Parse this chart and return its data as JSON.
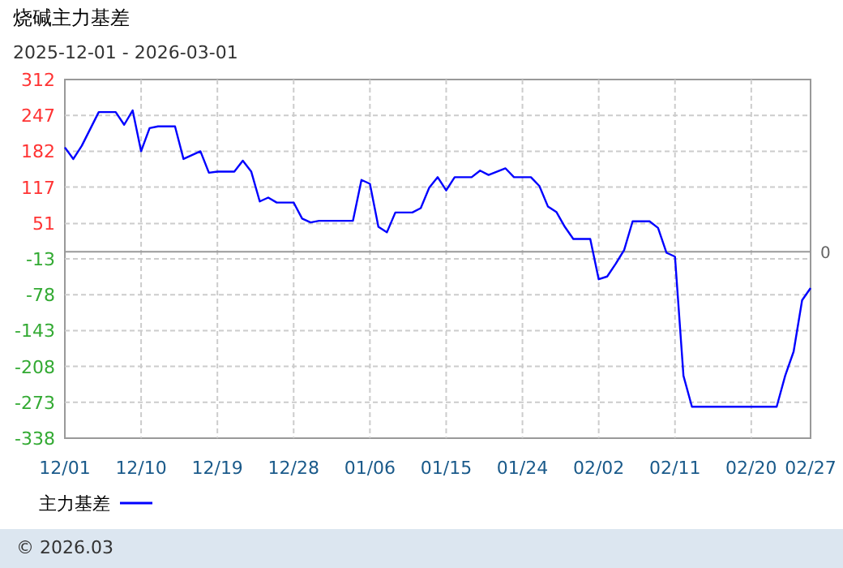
{
  "chart_data": {
    "type": "line",
    "title": "烧碱主力基差",
    "subtitle": "2025-12-01 - 2026-03-01",
    "x": [
      "2025-12-01",
      "2025-12-02",
      "2025-12-03",
      "2025-12-05",
      "2025-12-07",
      "2025-12-08",
      "2025-12-09",
      "2025-12-10",
      "2025-12-11",
      "2025-12-12",
      "2025-12-14",
      "2025-12-15",
      "2025-12-16",
      "2025-12-17",
      "2025-12-18",
      "2025-12-19",
      "2025-12-21",
      "2025-12-22",
      "2025-12-23",
      "2025-12-24",
      "2025-12-25",
      "2025-12-26",
      "2025-12-28",
      "2025-12-29",
      "2025-12-30",
      "2025-12-31",
      "2026-01-04",
      "2026-01-05",
      "2026-01-06",
      "2026-01-07",
      "2026-01-08",
      "2026-01-09",
      "2026-01-11",
      "2026-01-12",
      "2026-01-13",
      "2026-01-14",
      "2026-01-15",
      "2026-01-16",
      "2026-01-18",
      "2026-01-19",
      "2026-01-20",
      "2026-01-22",
      "2026-01-23",
      "2026-01-25",
      "2026-01-26",
      "2026-01-27",
      "2026-01-28",
      "2026-01-29",
      "2026-01-30",
      "2026-02-01",
      "2026-02-02",
      "2026-02-03",
      "2026-02-04",
      "2026-02-05",
      "2026-02-06",
      "2026-02-08",
      "2026-02-09",
      "2026-02-10",
      "2026-02-11",
      "2026-02-12",
      "2026-02-13",
      "2026-02-23",
      "2026-02-24",
      "2026-02-25",
      "2026-02-26",
      "2026-02-27"
    ],
    "series": [
      {
        "name": "主力基差",
        "color": "#0000ff",
        "values": [
          189,
          168,
          192,
          253,
          253,
          230,
          256,
          182,
          224,
          227,
          227,
          168,
          175,
          182,
          143,
          145,
          145,
          165,
          145,
          91,
          98,
          89,
          89,
          60,
          53,
          56,
          56,
          130,
          123,
          45,
          35,
          71,
          71,
          79,
          116,
          135,
          111,
          135,
          135,
          147,
          139,
          151,
          135,
          135,
          119,
          82,
          72,
          45,
          23,
          23,
          -50,
          -45,
          -22,
          3,
          55,
          55,
          43,
          -2,
          -9,
          -225,
          -281,
          -281,
          -225,
          -181,
          -88,
          -66
        ]
      }
    ],
    "xlim": [
      "2025-12-01",
      "2026-02-27"
    ],
    "xticks": [
      {
        "value": "2025-12-01",
        "label": "12/01"
      },
      {
        "value": "2025-12-10",
        "label": "12/10"
      },
      {
        "value": "2025-12-19",
        "label": "12/19"
      },
      {
        "value": "2025-12-28",
        "label": "12/28"
      },
      {
        "value": "2026-01-06",
        "label": "01/06"
      },
      {
        "value": "2026-01-15",
        "label": "01/15"
      },
      {
        "value": "2026-01-24",
        "label": "01/24"
      },
      {
        "value": "2026-02-02",
        "label": "02/02"
      },
      {
        "value": "2026-02-11",
        "label": "02/11"
      },
      {
        "value": "2026-02-20",
        "label": "02/20"
      },
      {
        "value": "2026-02-27",
        "label": "02/27"
      }
    ],
    "ylim": [
      -338,
      312
    ],
    "yticks": [
      -338,
      -273,
      -208,
      -143,
      -78,
      -13,
      51,
      117,
      182,
      247,
      312
    ],
    "grid": true,
    "legend": "bottom",
    "marker": "none",
    "line_style": "solid",
    "ref_lines": [
      {
        "axis": "y",
        "value": 0,
        "label": "0",
        "color": "#999999"
      }
    ],
    "annotations": [
      "© 2026.03"
    ]
  }
}
